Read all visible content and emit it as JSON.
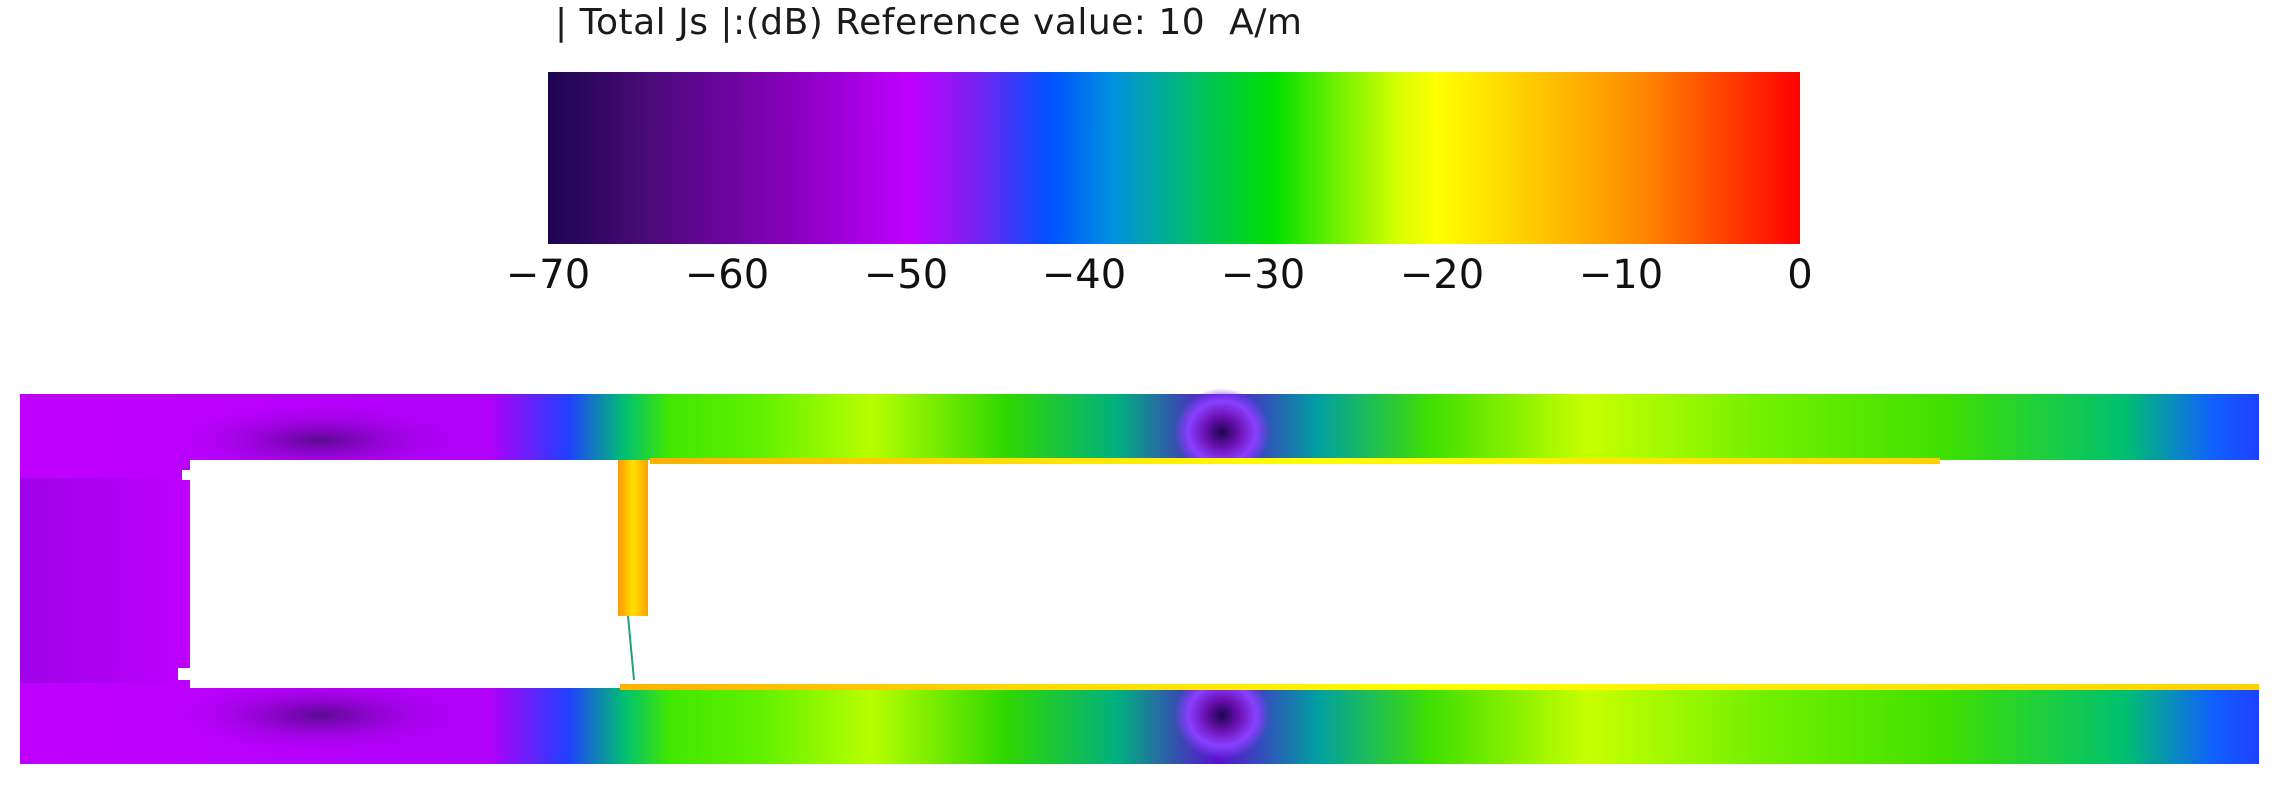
{
  "colorbar": {
    "title": "| Total Js |:(dB) Reference value: 10  A/m",
    "ticks": [
      "−70",
      "−60",
      "−50",
      "−40",
      "−30",
      "−20",
      "−10",
      "0"
    ],
    "colors": [
      "#1c0550",
      "#8a00c0",
      "#c000ff",
      "#0050ff",
      "#00e000",
      "#ffff00",
      "#ff8c00",
      "#ff0000"
    ]
  }
}
